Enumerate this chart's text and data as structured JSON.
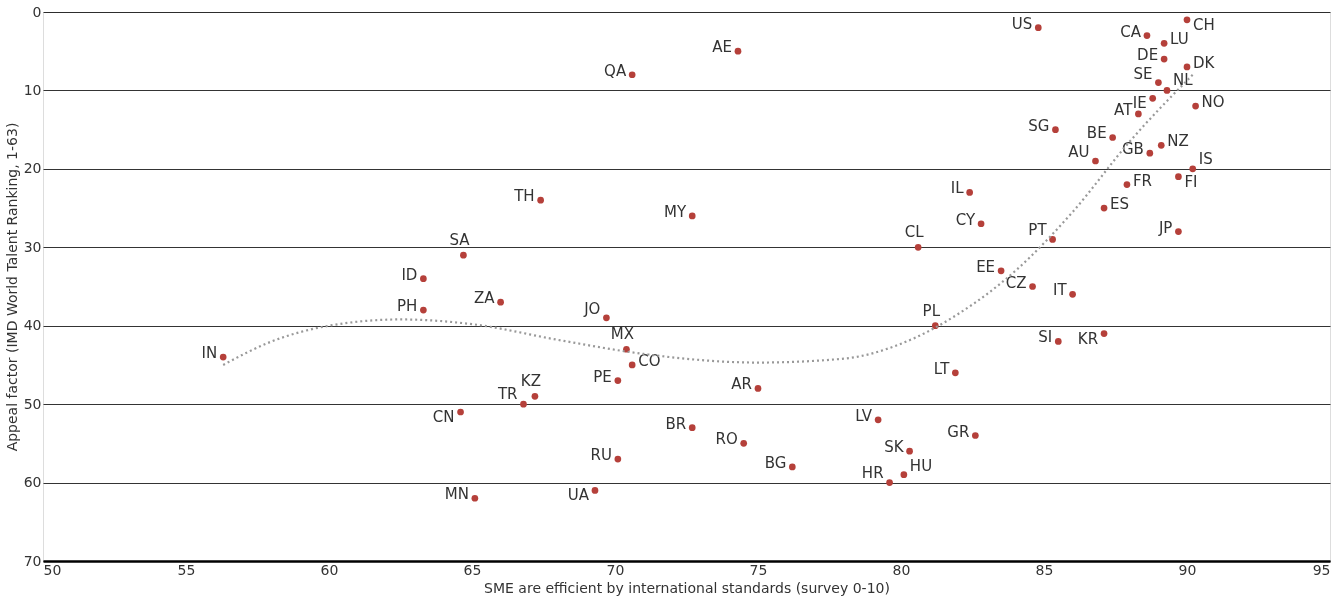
{
  "chart_data": {
    "type": "scatter",
    "xlabel": "SME are efficient by international standards (survey 0-10)",
    "ylabel": "Appeal factor  (IMD World Talent Ranking, 1-63)",
    "xlim": [
      50,
      95
    ],
    "xticks": [
      50,
      55,
      60,
      65,
      70,
      75,
      80,
      85,
      90,
      95
    ],
    "ylim": [
      70,
      0
    ],
    "yticks": [
      0,
      10,
      20,
      30,
      40,
      50,
      60,
      70
    ],
    "grid": "y",
    "marker": "circle",
    "series": [
      {
        "type": "scatter",
        "color": "#b5403a",
        "x": [
          84.8,
          90.0,
          88.6,
          89.2,
          89.2,
          90.0,
          89.0,
          89.3,
          88.8,
          90.3,
          88.3,
          85.4,
          87.4,
          89.1,
          88.7,
          86.8,
          90.2,
          89.7,
          87.9,
          82.4,
          87.1,
          82.8,
          89.7,
          85.3,
          80.6,
          83.5,
          84.6,
          86.0,
          81.2,
          87.1,
          85.5,
          81.9,
          79.2,
          82.6,
          80.3,
          80.1,
          79.6,
          76.2,
          74.5,
          72.7,
          75.0,
          70.4,
          70.6,
          70.1,
          69.7,
          72.7,
          67.4,
          74.3,
          70.6,
          64.7,
          63.3,
          63.3,
          66.0,
          56.3,
          67.2,
          66.8,
          64.6,
          70.1,
          69.3,
          65.1
        ],
        "values": [
          2,
          1,
          3,
          4,
          6,
          7,
          9,
          10,
          11,
          12,
          13,
          15,
          16,
          17,
          18,
          19,
          20,
          21,
          22,
          23,
          25,
          27,
          28,
          29,
          30,
          33,
          35,
          36,
          40,
          41,
          42,
          46,
          52,
          54,
          56,
          59,
          60,
          58,
          55,
          53,
          48,
          43,
          45,
          47,
          39,
          26,
          24,
          5,
          8,
          31,
          34,
          38,
          37,
          44,
          49,
          50,
          51,
          57,
          61,
          62
        ],
        "value_labels": [
          "US",
          "CH",
          "CA",
          "LU",
          "DE",
          "DK",
          "SE",
          "NL",
          "IE",
          "NO",
          "AT",
          "SG",
          "BE",
          "NZ",
          "GB",
          "AU",
          "IS",
          "FI",
          "FR",
          "IL",
          "ES",
          "CY",
          "JP",
          "PT",
          "CL",
          "EE",
          "CZ",
          "IT",
          "PL",
          "KR",
          "SI",
          "LT",
          "LV",
          "GR",
          "SK",
          "HU",
          "HR",
          "BG",
          "RO",
          "BR",
          "AR",
          "MX",
          "CO",
          "PE",
          "JO",
          "MY",
          "TH",
          "AE",
          "QA",
          "SA",
          "ID",
          "PH",
          "ZA",
          "IN",
          "KZ",
          "TR",
          "CN",
          "RU",
          "UA",
          "MN"
        ]
      },
      {
        "type": "line",
        "color": "#999999",
        "line_style": "dotted",
        "marker": "none",
        "x": [
          56.3,
          58,
          60,
          62.5,
          65,
          68,
          71,
          75,
          78,
          80,
          82,
          84,
          86,
          88,
          90.2
        ],
        "values": [
          45,
          42,
          40,
          39.2,
          39.8,
          41.8,
          43.6,
          44.7,
          44.2,
          42.3,
          38.5,
          33,
          25.5,
          16.5,
          8
        ]
      }
    ]
  }
}
